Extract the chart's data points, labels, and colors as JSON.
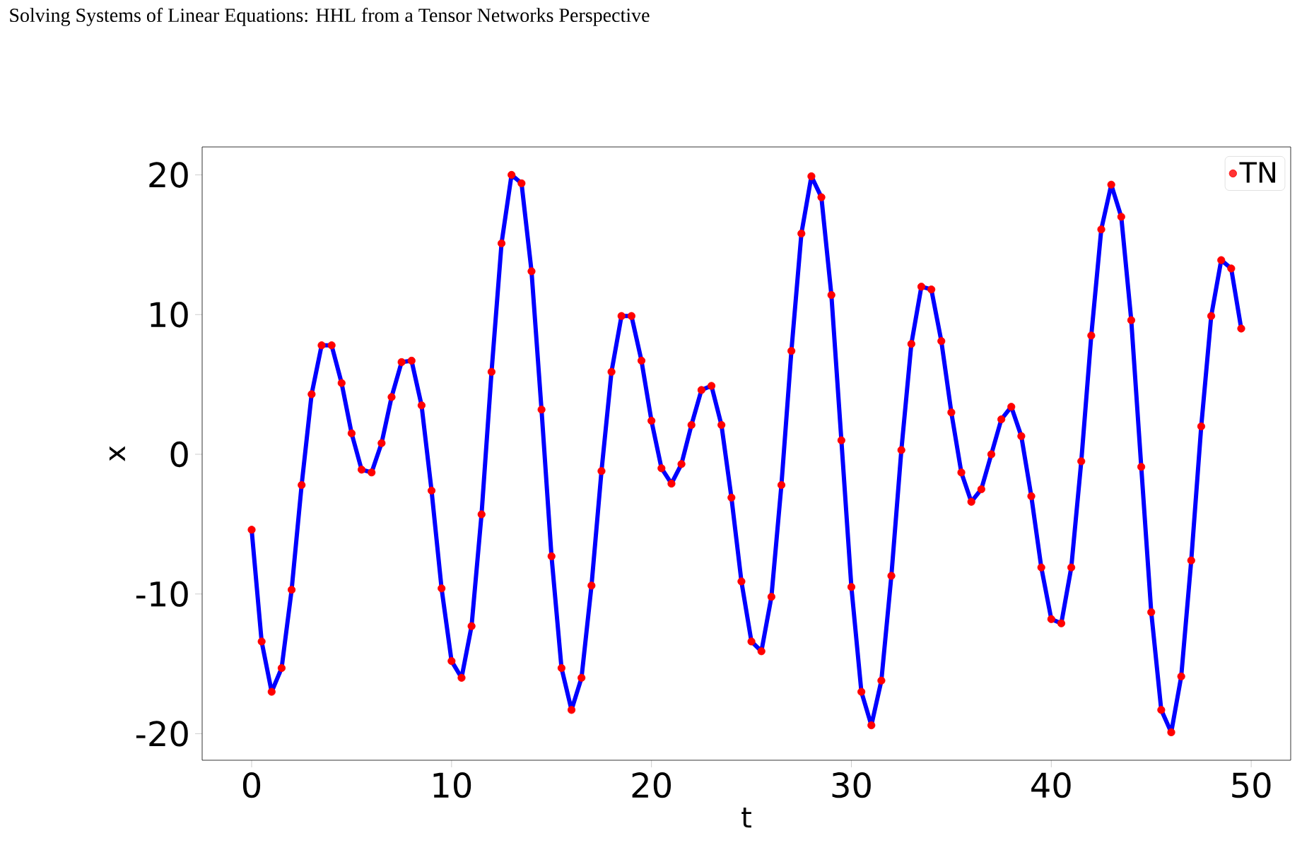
{
  "chart_data": {
    "type": "line",
    "title": "Solving Systems of Linear Equations: HHL from a Tensor Networks Perspective",
    "xlabel": "t",
    "ylabel": "x",
    "x": [
      0,
      0.5,
      1,
      1.5,
      2,
      2.5,
      3,
      3.5,
      4,
      4.5,
      5,
      5.5,
      6,
      6.5,
      7,
      7.5,
      8,
      8.5,
      9,
      9.5,
      10,
      10.5,
      11,
      11.5,
      12,
      12.5,
      13,
      13.5,
      14,
      14.5,
      15,
      15.5,
      16,
      16.5,
      17,
      17.5,
      18,
      18.5,
      19,
      19.5,
      20,
      20.5,
      21,
      21.5,
      22,
      22.5,
      23,
      23.5,
      24,
      24.5,
      25,
      25.5,
      26,
      26.5,
      27,
      27.5,
      28,
      28.5,
      29,
      29.5,
      30,
      30.5,
      31,
      31.5,
      32,
      32.5,
      33,
      33.5,
      34,
      34.5,
      35,
      35.5,
      36,
      36.5,
      37,
      37.5,
      38,
      38.5,
      39,
      39.5,
      40,
      40.5,
      41,
      41.5,
      42,
      42.5,
      43,
      43.5,
      44,
      44.5,
      45,
      45.5,
      46,
      46.5,
      47,
      47.5,
      48,
      48.5,
      49,
      49.5
    ],
    "series": [
      {
        "type": "line",
        "color": "#0000ff",
        "values": [
          -5.4,
          -13.4,
          -17.0,
          -15.3,
          -9.7,
          -2.2,
          4.3,
          7.8,
          7.8,
          5.1,
          1.5,
          -1.1,
          -1.3,
          0.8,
          4.1,
          6.6,
          6.7,
          3.5,
          -2.6,
          -9.6,
          -14.8,
          -16.0,
          -12.3,
          -4.3,
          5.9,
          15.1,
          20.0,
          19.4,
          13.1,
          3.2,
          -7.3,
          -15.3,
          -18.3,
          -16.0,
          -9.4,
          -1.2,
          5.9,
          9.9,
          9.9,
          6.7,
          2.4,
          -1.0,
          -2.1,
          -0.7,
          2.1,
          4.6,
          4.9,
          2.1,
          -3.1,
          -9.1,
          -13.4,
          -14.1,
          -10.2,
          -2.2,
          7.4,
          15.8,
          19.9,
          18.4,
          11.4,
          1.0,
          -9.5,
          -17.0,
          -19.4,
          -16.2,
          -8.7,
          0.3,
          7.9,
          12.0,
          11.8,
          8.1,
          3.0,
          -1.3,
          -3.4,
          -2.5,
          0.0,
          2.5,
          3.4,
          1.3,
          -3.0,
          -8.1,
          -11.8,
          -12.1,
          -8.1,
          -0.5,
          8.5,
          16.1,
          19.3,
          17.0,
          9.6,
          -0.9,
          -11.3,
          -18.3,
          -19.9,
          -15.9,
          -7.6,
          2.0,
          9.9,
          13.9,
          13.3,
          9.0
        ]
      },
      {
        "type": "scatter",
        "name": "TN",
        "color": "#ff0000",
        "marker": "circle",
        "values": [
          -5.4,
          -13.4,
          -17.0,
          -15.3,
          -9.7,
          -2.2,
          4.3,
          7.8,
          7.8,
          5.1,
          1.5,
          -1.1,
          -1.3,
          0.8,
          4.1,
          6.6,
          6.7,
          3.5,
          -2.6,
          -9.6,
          -14.8,
          -16.0,
          -12.3,
          -4.3,
          5.9,
          15.1,
          20.0,
          19.4,
          13.1,
          3.2,
          -7.3,
          -15.3,
          -18.3,
          -16.0,
          -9.4,
          -1.2,
          5.9,
          9.9,
          9.9,
          6.7,
          2.4,
          -1.0,
          -2.1,
          -0.7,
          2.1,
          4.6,
          4.9,
          2.1,
          -3.1,
          -9.1,
          -13.4,
          -14.1,
          -10.2,
          -2.2,
          7.4,
          15.8,
          19.9,
          18.4,
          11.4,
          1.0,
          -9.5,
          -17.0,
          -19.4,
          -16.2,
          -8.7,
          0.3,
          7.9,
          12.0,
          11.8,
          8.1,
          3.0,
          -1.3,
          -3.4,
          -2.5,
          0.0,
          2.5,
          3.4,
          1.3,
          -3.0,
          -8.1,
          -11.8,
          -12.1,
          -8.1,
          -0.5,
          8.5,
          16.1,
          19.3,
          17.0,
          9.6,
          -0.9,
          -11.3,
          -18.3,
          -19.9,
          -15.9,
          -7.6,
          2.0,
          9.9,
          13.9,
          13.3,
          9.0
        ]
      }
    ],
    "xlim": [
      -2.475,
      51.975
    ],
    "ylim": [
      -21.9,
      22.0
    ],
    "xticks": [
      0,
      10,
      20,
      30,
      40,
      50
    ],
    "yticks": [
      -20,
      -10,
      0,
      10,
      20
    ],
    "grid": false,
    "legend": "top right",
    "line_style": "solid"
  }
}
